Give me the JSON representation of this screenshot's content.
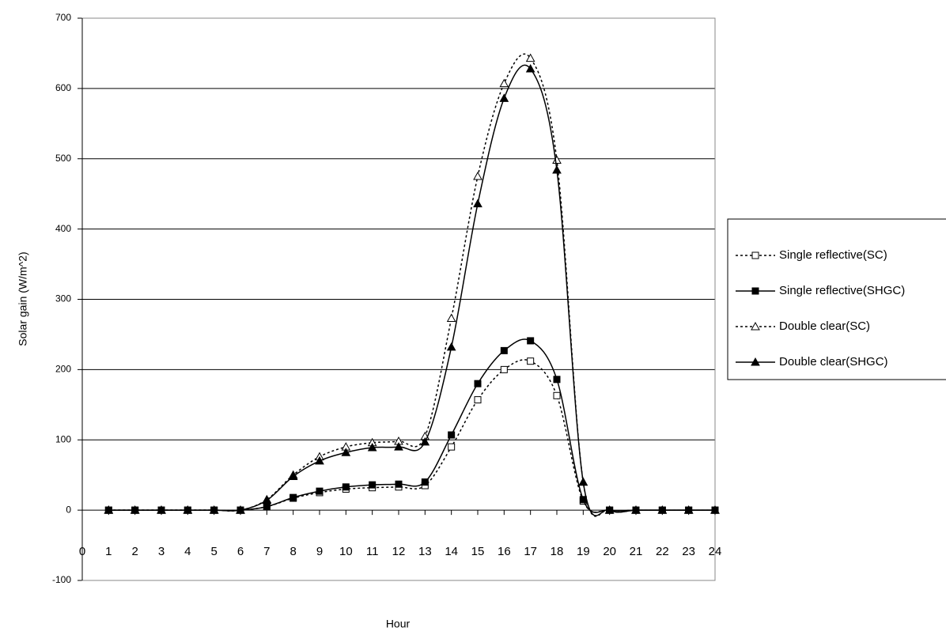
{
  "chart_data": {
    "type": "line",
    "x_label": "Hour",
    "y_label": "Solar gain  (W/m^2)",
    "x": [
      1,
      2,
      3,
      4,
      5,
      6,
      7,
      8,
      9,
      10,
      11,
      12,
      13,
      14,
      15,
      16,
      17,
      18,
      19,
      20,
      21,
      22,
      23,
      24
    ],
    "xlim": [
      0,
      24
    ],
    "xticks": [
      0,
      1,
      2,
      3,
      4,
      5,
      6,
      7,
      8,
      9,
      10,
      11,
      12,
      13,
      14,
      15,
      16,
      17,
      18,
      19,
      20,
      21,
      22,
      23,
      24
    ],
    "ylim": [
      -100,
      700
    ],
    "yticks": [
      -100,
      0,
      100,
      200,
      300,
      400,
      500,
      600,
      700
    ],
    "grid": true,
    "legend": "right",
    "series": [
      {
        "name": "Single reflective(SC)",
        "color": "#000000",
        "marker": "square",
        "filled": false,
        "dashed": true,
        "values": [
          0,
          0,
          0,
          0,
          0,
          0,
          5,
          17,
          25,
          30,
          32,
          33,
          35,
          90,
          157,
          200,
          212,
          163,
          13,
          0,
          0,
          0,
          0,
          0
        ]
      },
      {
        "name": "Single reflective(SHGC)",
        "color": "#000000",
        "marker": "square",
        "filled": true,
        "dashed": false,
        "values": [
          0,
          0,
          0,
          0,
          0,
          0,
          5,
          18,
          27,
          33,
          36,
          37,
          40,
          107,
          180,
          227,
          241,
          186,
          15,
          0,
          0,
          0,
          0,
          0
        ]
      },
      {
        "name": "Double clear(SC)",
        "color": "#000000",
        "marker": "triangle",
        "filled": false,
        "dashed": true,
        "values": [
          0,
          0,
          0,
          0,
          0,
          0,
          15,
          50,
          76,
          90,
          96,
          98,
          105,
          273,
          475,
          607,
          643,
          498,
          40,
          0,
          0,
          0,
          0,
          0
        ]
      },
      {
        "name": "Double clear(SHGC)",
        "color": "#000000",
        "marker": "triangle",
        "filled": true,
        "dashed": false,
        "values": [
          0,
          0,
          0,
          0,
          0,
          0,
          14,
          48,
          70,
          82,
          89,
          90,
          97,
          232,
          436,
          586,
          628,
          484,
          40,
          0,
          0,
          0,
          0,
          0
        ]
      }
    ]
  }
}
